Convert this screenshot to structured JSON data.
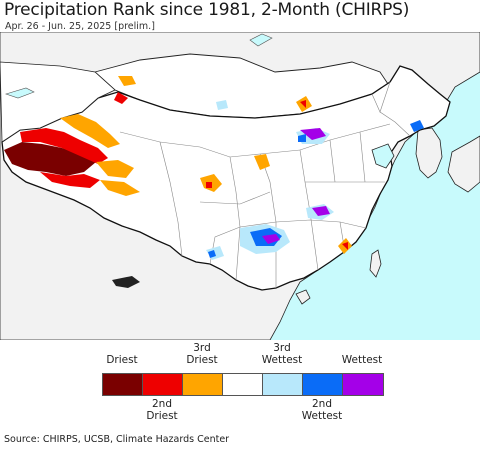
{
  "title": "Precipitation Rank since 1981, 2-Month (CHIRPS)",
  "subtitle": "Apr. 26 - Jun. 25, 2025 [prelim.]",
  "map": {
    "ocean_color": "#c8fafc",
    "neighbor_land_color": "#f2f2f2",
    "region_color": "#ffffff",
    "border_color": "#222222",
    "province_border_color": "#777777"
  },
  "legend": {
    "top_labels": [
      "Driest",
      "3rd\nDriest",
      "3rd\nWettest",
      "Wettest"
    ],
    "bottom_labels": [
      "2nd\nDriest",
      "2nd\nWettest"
    ],
    "categories": [
      {
        "name": "Driest",
        "color": "#7a0000"
      },
      {
        "name": "2nd Driest",
        "color": "#ee0000"
      },
      {
        "name": "3rd Driest",
        "color": "#ffa500"
      },
      {
        "name": "Normal",
        "color": "#ffffff"
      },
      {
        "name": "3rd Wettest",
        "color": "#b8e8fb"
      },
      {
        "name": "2nd Wettest",
        "color": "#0a6cf7"
      },
      {
        "name": "Wettest",
        "color": "#a400e8"
      }
    ]
  },
  "source": "Source: CHIRPS, UCSB, Climate Hazards Center"
}
